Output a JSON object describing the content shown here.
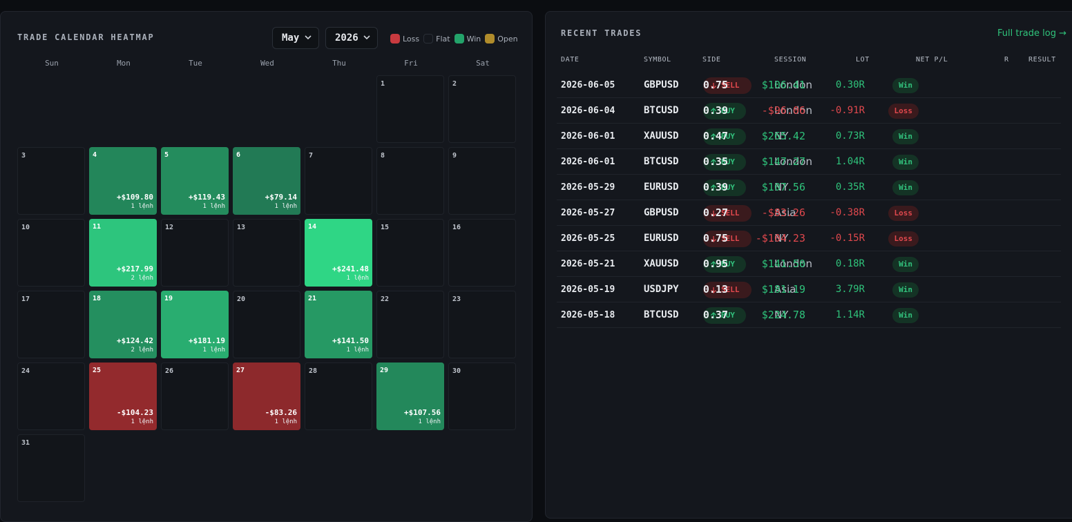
{
  "calendar": {
    "title": "TRADE CALENDAR HEATMAP",
    "month": "May",
    "year": "2026",
    "legend": [
      {
        "label": "Loss",
        "color": "#c83a3f"
      },
      {
        "label": "Flat",
        "color": "#14171d"
      },
      {
        "label": "Win",
        "color": "#23a36a"
      },
      {
        "label": "Open",
        "color": "#b08c2b"
      }
    ],
    "weekdays": [
      "Sun",
      "Mon",
      "Tue",
      "Wed",
      "Thu",
      "Fri",
      "Sat"
    ],
    "days": [
      {
        "day": "1"
      },
      {
        "day": "2"
      },
      {
        "day": "3"
      },
      {
        "day": "4",
        "pnl": "+$109.80",
        "count": "1 lệnh",
        "result": "win",
        "color": "#23865a"
      },
      {
        "day": "5",
        "pnl": "+$119.43",
        "count": "1 lệnh",
        "result": "win",
        "color": "#248c5d"
      },
      {
        "day": "6",
        "pnl": "+$79.14",
        "count": "1 lệnh",
        "result": "win",
        "color": "#227a55"
      },
      {
        "day": "7"
      },
      {
        "day": "8"
      },
      {
        "day": "9"
      },
      {
        "day": "10"
      },
      {
        "day": "11",
        "pnl": "+$217.99",
        "count": "2 lệnh",
        "result": "win",
        "color": "#2dc57d"
      },
      {
        "day": "12"
      },
      {
        "day": "13"
      },
      {
        "day": "14",
        "pnl": "+$241.48",
        "count": "1 lệnh",
        "result": "win",
        "color": "#2fd685"
      },
      {
        "day": "15"
      },
      {
        "day": "16"
      },
      {
        "day": "17"
      },
      {
        "day": "18",
        "pnl": "+$124.42",
        "count": "2 lệnh",
        "result": "win",
        "color": "#248f5f"
      },
      {
        "day": "19",
        "pnl": "+$181.19",
        "count": "1 lệnh",
        "result": "win",
        "color": "#29ad70"
      },
      {
        "day": "20"
      },
      {
        "day": "21",
        "pnl": "+$141.50",
        "count": "1 lệnh",
        "result": "win",
        "color": "#269964"
      },
      {
        "day": "22"
      },
      {
        "day": "23"
      },
      {
        "day": "24"
      },
      {
        "day": "25",
        "pnl": "-$104.23",
        "count": "1 lệnh",
        "result": "loss",
        "color": "#932a2d"
      },
      {
        "day": "26"
      },
      {
        "day": "27",
        "pnl": "-$83.26",
        "count": "1 lệnh",
        "result": "loss",
        "color": "#8d292c"
      },
      {
        "day": "28"
      },
      {
        "day": "29",
        "pnl": "+$107.56",
        "count": "1 lệnh",
        "result": "win",
        "color": "#23885b"
      },
      {
        "day": "30"
      },
      {
        "day": "31"
      }
    ]
  },
  "trades": {
    "title": "RECENT TRADES",
    "full_log_label": "Full trade log →",
    "headers": {
      "date": "DATE",
      "symbol": "SYMBOL",
      "side": "SIDE",
      "session": "SESSION",
      "lot": "LOT",
      "net": "NET P/L",
      "r": "R",
      "result": "RESULT"
    },
    "rows": [
      {
        "date": "2026-06-05",
        "symbol": "GBPUSD",
        "side": "SELL",
        "session": "London",
        "lot": "0.75",
        "net": "$106.41",
        "r": "0.30R",
        "result": "Win"
      },
      {
        "date": "2026-06-04",
        "symbol": "BTCUSD",
        "side": "BUY",
        "session": "London",
        "lot": "0.39",
        "net": "-$96.06",
        "r": "-0.91R",
        "result": "Loss"
      },
      {
        "date": "2026-06-01",
        "symbol": "XAUUSD",
        "side": "BUY",
        "session": "NY",
        "lot": "0.47",
        "net": "$265.42",
        "r": "0.73R",
        "result": "Win"
      },
      {
        "date": "2026-06-01",
        "symbol": "BTCUSD",
        "side": "BUY",
        "session": "London",
        "lot": "0.35",
        "net": "$147.27",
        "r": "1.04R",
        "result": "Win"
      },
      {
        "date": "2026-05-29",
        "symbol": "EURUSD",
        "side": "BUY",
        "session": "NY",
        "lot": "0.39",
        "net": "$107.56",
        "r": "0.35R",
        "result": "Win"
      },
      {
        "date": "2026-05-27",
        "symbol": "GBPUSD",
        "side": "SELL",
        "session": "Asia",
        "lot": "0.27",
        "net": "-$83.26",
        "r": "-0.38R",
        "result": "Loss"
      },
      {
        "date": "2026-05-25",
        "symbol": "EURUSD",
        "side": "SELL",
        "session": "NY",
        "lot": "0.75",
        "net": "-$104.23",
        "r": "-0.15R",
        "result": "Loss"
      },
      {
        "date": "2026-05-21",
        "symbol": "XAUUSD",
        "side": "BUY",
        "session": "London",
        "lot": "0.95",
        "net": "$141.50",
        "r": "0.18R",
        "result": "Win"
      },
      {
        "date": "2026-05-19",
        "symbol": "USDJPY",
        "side": "SELL",
        "session": "Asia",
        "lot": "0.13",
        "net": "$181.19",
        "r": "3.79R",
        "result": "Win"
      },
      {
        "date": "2026-05-18",
        "symbol": "BTCUSD",
        "side": "BUY",
        "session": "NY",
        "lot": "0.37",
        "net": "$224.78",
        "r": "1.14R",
        "result": "Win"
      }
    ]
  }
}
